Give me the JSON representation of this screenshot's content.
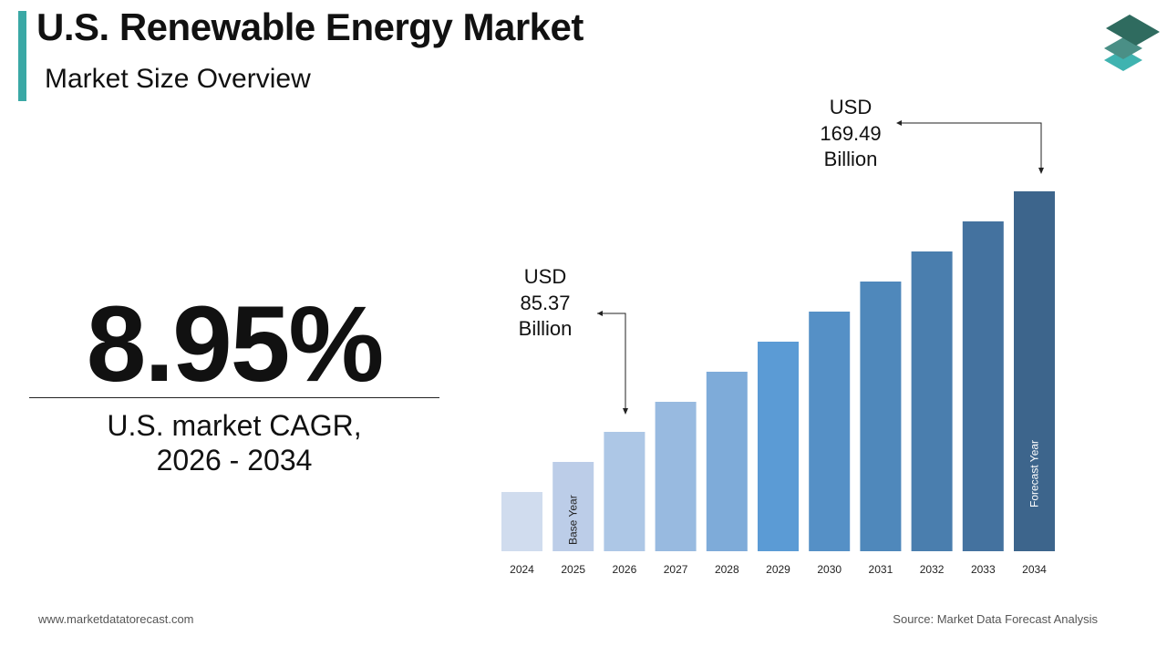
{
  "header": {
    "title": "U.S. Renewable Energy Market",
    "subtitle": "Market Size Overview"
  },
  "kpi": {
    "value": "8.95%",
    "label_line1": "U.S. market CAGR,",
    "label_line2": "2026 - 2034"
  },
  "footer": {
    "website": "www.marketdatatorecast.com",
    "source": "Source: Market Data Forecast Analysis"
  },
  "colors": {
    "accent": "#3aa8a5",
    "logo": [
      "#2f6b5f",
      "#4a8f86",
      "#3fb3b0"
    ],
    "bars": [
      "#d0dcee",
      "#bccde8",
      "#adc7e6",
      "#98bae0",
      "#7eabd9",
      "#5b9bd5",
      "#5590c6",
      "#4f88bb",
      "#4a7eae",
      "#44729f",
      "#3d658c"
    ]
  },
  "logo": {
    "icon": "stacked-layers-icon"
  },
  "chart_data": {
    "type": "bar",
    "title": "",
    "xlabel": "",
    "ylabel": "",
    "categories": [
      "2024",
      "2025",
      "2026",
      "2027",
      "2028",
      "2029",
      "2030",
      "2031",
      "2032",
      "2033",
      "2034"
    ],
    "values": [
      null,
      null,
      85.37,
      null,
      null,
      null,
      null,
      null,
      null,
      null,
      169.49
    ],
    "unit": "USD Billion",
    "grid": false,
    "bar_labels": {
      "2025": "Base Year",
      "2034": "Forecast Year"
    },
    "annotations": [
      {
        "category": "2026",
        "line1": "USD",
        "line2": "85.37",
        "line3": "Billion"
      },
      {
        "category": "2034",
        "line1": "USD",
        "line2": "169.49",
        "line3": "Billion"
      }
    ]
  }
}
